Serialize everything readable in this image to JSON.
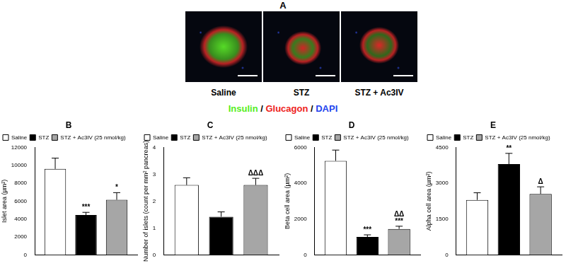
{
  "panel_a": {
    "label": "A",
    "images": [
      "Saline",
      "STZ",
      "STZ + Ac3IV"
    ],
    "stains": [
      {
        "text": "Insulin",
        "color": "#55ee22"
      },
      {
        "text": "Glucagon",
        "color": "#ee2222"
      },
      {
        "text": "DAPI",
        "color": "#2244ee"
      }
    ],
    "separator": " / "
  },
  "chart_data": [
    {
      "type": "bar",
      "title": "B",
      "y_label": "Islet area (µm²)",
      "categories": [
        null
      ],
      "series": [
        {
          "name": "Saline",
          "color": "#ffffff",
          "values": [
            9600
          ],
          "errors": [
            1200
          ]
        },
        {
          "name": "STZ",
          "color": "#000000",
          "values": [
            4450
          ],
          "errors": [
            300
          ],
          "annotations": [
            "***"
          ]
        },
        {
          "name": "STZ + Ac3IV (25 nmol/kg)",
          "color": "#a6a6a6",
          "values": [
            6150
          ],
          "errors": [
            800
          ],
          "annotations": [
            "*"
          ]
        }
      ],
      "ylim": [
        0,
        12000
      ],
      "yticks": [
        0,
        2000,
        4000,
        6000,
        8000,
        10000,
        12000
      ],
      "grid": false,
      "legend": "top-left"
    },
    {
      "type": "bar",
      "title": "C",
      "y_label": "Number of islets (count per mm² pancreas)",
      "categories": [
        null
      ],
      "series": [
        {
          "name": "Saline",
          "color": "#ffffff",
          "values": [
            2.6
          ],
          "errors": [
            0.27
          ]
        },
        {
          "name": "STZ",
          "color": "#000000",
          "values": [
            1.42
          ],
          "errors": [
            0.18
          ]
        },
        {
          "name": "STZ + Ac3IV (25 nmol/kg)",
          "color": "#a6a6a6",
          "values": [
            2.6
          ],
          "errors": [
            0.25
          ],
          "annotations": [
            "ΔΔΔ"
          ]
        }
      ],
      "ylim": [
        0,
        4
      ],
      "yticks": [
        0,
        1,
        2,
        3,
        4
      ],
      "grid": false,
      "legend": "top-left"
    },
    {
      "type": "bar",
      "title": "D",
      "y_label": "Beta cell area (µm²)",
      "categories": [
        null
      ],
      "series": [
        {
          "name": "Saline",
          "color": "#ffffff",
          "values": [
            5250
          ],
          "errors": [
            600
          ]
        },
        {
          "name": "STZ",
          "color": "#000000",
          "values": [
            1000
          ],
          "errors": [
            120
          ],
          "annotations": [
            "***"
          ]
        },
        {
          "name": "STZ + Ac3IV (25 nmol/kg)",
          "color": "#a6a6a6",
          "values": [
            1450
          ],
          "errors": [
            150
          ],
          "annotations": [
            "ΔΔ",
            "***"
          ]
        }
      ],
      "ylim": [
        0,
        6000
      ],
      "yticks": [
        0,
        2000,
        4000,
        6000
      ],
      "grid": false,
      "legend": "top-left"
    },
    {
      "type": "bar",
      "title": "E",
      "y_label": "Alpha cell area (µm²)",
      "categories": [
        null
      ],
      "series": [
        {
          "name": "Saline",
          "color": "#ffffff",
          "values": [
            2300
          ],
          "errors": [
            300
          ]
        },
        {
          "name": "STZ",
          "color": "#000000",
          "values": [
            3800
          ],
          "errors": [
            450
          ],
          "annotations": [
            "**"
          ]
        },
        {
          "name": "STZ + Ac3IV (25 nmol/kg)",
          "color": "#a6a6a6",
          "values": [
            2550
          ],
          "errors": [
            300
          ],
          "annotations": [
            "Δ"
          ]
        }
      ],
      "ylim": [
        0,
        4500
      ],
      "yticks": [
        0,
        1500,
        3000,
        4500
      ],
      "grid": false,
      "legend": "top-left"
    }
  ]
}
